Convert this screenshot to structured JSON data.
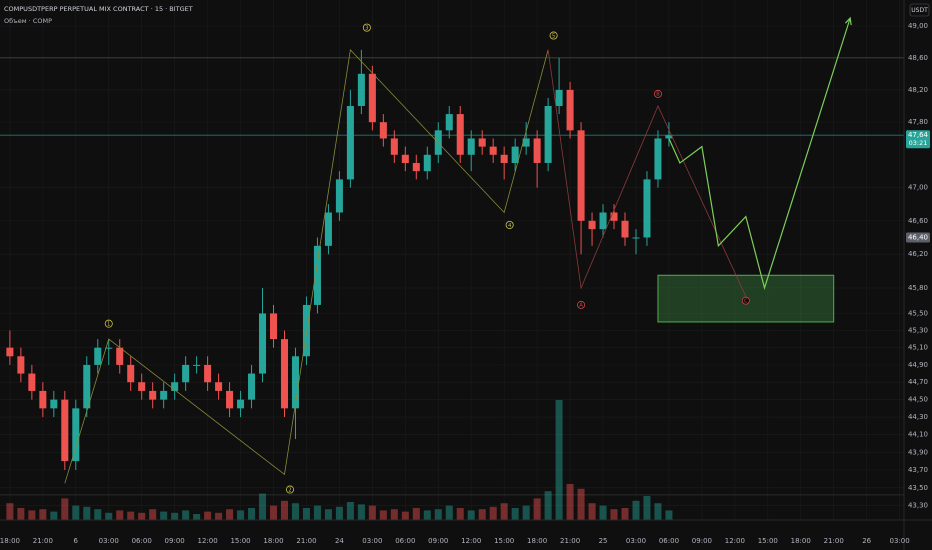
{
  "chart_data": {
    "type": "candlestick",
    "title": "COMPUSDTPERP PERPETUAL MIX CONTRACT · 15 · BITGET",
    "subtitle": "Объем · COMP",
    "currency": "USDT",
    "log_scale": true,
    "grid": true,
    "up_color": "#26a69a",
    "down_color": "#ef5350",
    "x": [
      0,
      1,
      2,
      3,
      4,
      5,
      6,
      7,
      8,
      9,
      10,
      11,
      12,
      13,
      14,
      15,
      16,
      17,
      18,
      19,
      20,
      21,
      22,
      23,
      24,
      25,
      26,
      27,
      28,
      29,
      30,
      31,
      32,
      33,
      34,
      35,
      36,
      37,
      38,
      39,
      40,
      41,
      42,
      43,
      44,
      45,
      46,
      47,
      48,
      49,
      50,
      51,
      52,
      53,
      54,
      55,
      56,
      57,
      58,
      59,
      60
    ],
    "open": [
      45.1,
      45.0,
      44.8,
      44.6,
      44.4,
      44.5,
      43.8,
      44.4,
      44.9,
      45.1,
      45.1,
      44.9,
      44.7,
      44.6,
      44.5,
      44.6,
      44.7,
      44.9,
      44.9,
      44.7,
      44.6,
      44.4,
      44.5,
      44.8,
      45.5,
      45.2,
      44.4,
      45.0,
      45.6,
      46.3,
      46.7,
      47.1,
      48.0,
      48.4,
      47.8,
      47.6,
      47.4,
      47.3,
      47.2,
      47.4,
      47.7,
      47.9,
      47.4,
      47.6,
      47.5,
      47.4,
      47.3,
      47.5,
      47.6,
      47.3,
      48.0,
      48.2,
      47.7,
      46.6,
      46.5,
      46.7,
      46.6,
      46.4,
      46.4,
      47.1,
      47.6
    ],
    "high": [
      45.3,
      45.1,
      44.9,
      44.7,
      44.6,
      44.6,
      44.5,
      45.0,
      45.2,
      45.2,
      45.2,
      45.0,
      44.8,
      44.7,
      44.7,
      44.8,
      45.0,
      45.0,
      45.0,
      44.8,
      44.7,
      44.6,
      44.9,
      45.8,
      45.6,
      45.3,
      45.1,
      45.7,
      46.4,
      46.8,
      47.2,
      48.2,
      48.7,
      48.5,
      47.9,
      47.7,
      47.5,
      47.4,
      47.5,
      47.8,
      48.0,
      48.0,
      47.7,
      47.7,
      47.6,
      47.5,
      47.6,
      47.8,
      47.7,
      48.1,
      48.6,
      48.3,
      47.8,
      46.7,
      46.8,
      46.8,
      46.7,
      46.5,
      47.2,
      47.7,
      47.8
    ],
    "low": [
      44.9,
      44.7,
      44.5,
      44.3,
      44.3,
      43.7,
      43.7,
      44.3,
      44.8,
      44.9,
      44.8,
      44.6,
      44.5,
      44.4,
      44.4,
      44.5,
      44.6,
      44.8,
      44.6,
      44.5,
      44.3,
      44.3,
      44.4,
      44.7,
      45.1,
      44.3,
      44.05,
      44.9,
      45.5,
      46.2,
      46.6,
      47.0,
      47.9,
      47.7,
      47.5,
      47.3,
      47.2,
      47.1,
      47.1,
      47.3,
      47.6,
      47.3,
      47.2,
      47.4,
      47.3,
      47.1,
      47.2,
      47.4,
      47.0,
      47.2,
      47.9,
      47.6,
      46.2,
      46.3,
      46.4,
      46.5,
      46.3,
      46.2,
      46.3,
      47.0,
      47.5
    ],
    "close": [
      45.0,
      44.8,
      44.6,
      44.4,
      44.5,
      43.8,
      44.4,
      44.9,
      45.1,
      45.1,
      44.9,
      44.7,
      44.6,
      44.5,
      44.6,
      44.7,
      44.9,
      44.9,
      44.7,
      44.6,
      44.4,
      44.5,
      44.8,
      45.5,
      45.2,
      44.4,
      45.0,
      45.6,
      46.3,
      46.7,
      47.1,
      48.0,
      48.4,
      47.8,
      47.6,
      47.4,
      47.3,
      47.2,
      47.4,
      47.7,
      47.9,
      47.4,
      47.6,
      47.5,
      47.4,
      47.3,
      47.5,
      47.6,
      47.3,
      48.0,
      48.2,
      47.7,
      46.6,
      46.5,
      46.7,
      46.6,
      46.4,
      46.4,
      47.1,
      47.6,
      47.64
    ],
    "volume": [
      14,
      10,
      8,
      9,
      7,
      18,
      12,
      11,
      9,
      6,
      8,
      7,
      6,
      9,
      7,
      6,
      8,
      5,
      7,
      6,
      9,
      8,
      10,
      22,
      12,
      16,
      14,
      10,
      12,
      9,
      11,
      15,
      13,
      12,
      8,
      9,
      7,
      10,
      8,
      9,
      12,
      10,
      8,
      9,
      11,
      14,
      10,
      12,
      18,
      24,
      100,
      30,
      26,
      14,
      12,
      9,
      10,
      16,
      20,
      14,
      8
    ],
    "xlim": [
      -0.9,
      81.4
    ],
    "ylim": [
      43.14,
      49.33
    ],
    "xticks": [
      {
        "value": 0,
        "label": "18:00"
      },
      {
        "value": 3,
        "label": "21:00"
      },
      6,
      {
        "value": 9,
        "label": "03:00"
      },
      {
        "value": 12,
        "label": "06:00"
      },
      {
        "value": 15,
        "label": "09:00"
      },
      {
        "value": 18,
        "label": "12:00"
      },
      {
        "value": 21,
        "label": "15:00"
      },
      {
        "value": 24,
        "label": "18:00"
      },
      {
        "value": 27,
        "label": "21:00"
      },
      {
        "value": 30,
        "label": "24"
      },
      {
        "value": 33,
        "label": "03:00"
      },
      {
        "value": 36,
        "label": "06:00"
      },
      {
        "value": 39,
        "label": "09:00"
      },
      {
        "value": 42,
        "label": "12:00"
      },
      {
        "value": 45,
        "label": "15:00"
      },
      {
        "value": 48,
        "label": "18:00"
      },
      {
        "value": 51,
        "label": "21:00"
      },
      {
        "value": 54,
        "label": "25"
      },
      {
        "value": 57,
        "label": "03:00"
      },
      {
        "value": 60,
        "label": "06:00"
      },
      {
        "value": 63,
        "label": "09:00"
      },
      {
        "value": 66,
        "label": "12:00"
      },
      {
        "value": 69,
        "label": "15:00"
      },
      {
        "value": 72,
        "label": "18:00"
      },
      {
        "value": 75,
        "label": "21:00"
      },
      {
        "value": 78,
        "label": "26"
      },
      {
        "value": 81,
        "label": "03:00"
      }
    ],
    "yticks": [
      {
        "value": 49.0,
        "label": "49,00"
      },
      {
        "value": 48.6,
        "label": "48,60"
      },
      {
        "value": 48.2,
        "label": "48,20"
      },
      {
        "value": 47.8,
        "label": "47,80"
      },
      {
        "value": 47.0,
        "label": "47,00"
      },
      {
        "value": 46.6,
        "label": "46,60"
      },
      {
        "value": 46.2,
        "label": "46,20"
      },
      {
        "value": 45.8,
        "label": "45,80"
      },
      {
        "value": 45.5,
        "label": "45,50"
      },
      {
        "value": 45.3,
        "label": "45,30"
      },
      {
        "value": 45.1,
        "label": "45,10"
      },
      {
        "value": 44.9,
        "label": "44,90"
      },
      {
        "value": 44.7,
        "label": "44,70"
      },
      {
        "value": 44.5,
        "label": "44,50"
      },
      {
        "value": 44.3,
        "label": "44,30"
      },
      {
        "value": 44.1,
        "label": "44,10"
      },
      {
        "value": 43.9,
        "label": "43,90"
      },
      {
        "value": 43.7,
        "label": "43,70"
      },
      {
        "value": 43.5,
        "label": "43,50"
      },
      {
        "value": 43.3,
        "label": "43,30"
      }
    ],
    "hlines": [
      {
        "value": 48.6,
        "color": "#3b4a3b"
      },
      {
        "value": 47.64,
        "color": "#1f7a70"
      },
      {
        "value": 43.42,
        "color": "#333333"
      }
    ],
    "price_labels": [
      {
        "value": 47.64,
        "label": "47,64",
        "countdown": "03:21",
        "color": "#26a69a"
      },
      {
        "value": 46.4,
        "label": "46,40",
        "color": "#5d606b"
      }
    ],
    "waves": [
      {
        "color": "#8a8a3a",
        "x": [
          5,
          9,
          25,
          31,
          45,
          49
        ],
        "y": [
          43.55,
          45.2,
          43.65,
          48.7,
          46.7,
          48.7
        ]
      },
      {
        "color": "#8a3a3a",
        "x": [
          49,
          52,
          59,
          67
        ],
        "y": [
          48.7,
          45.8,
          48.0,
          45.7
        ]
      },
      {
        "color": "#7ccf5a",
        "x": [
          60,
          61,
          63,
          64.5,
          67,
          68.7,
          76.5
        ],
        "y": [
          47.6,
          47.3,
          47.5,
          46.3,
          46.65,
          45.8,
          49.1
        ]
      }
    ],
    "wave_labels": [
      {
        "text": "1",
        "x": 9,
        "y": 45.38,
        "color": "#d4c94a"
      },
      {
        "text": "2",
        "x": 25.5,
        "y": 43.48,
        "color": "#d4c94a"
      },
      {
        "text": "3",
        "x": 32.5,
        "y": 48.98,
        "color": "#d4c94a"
      },
      {
        "text": "4",
        "x": 45.5,
        "y": 46.55,
        "color": "#d4c94a"
      },
      {
        "text": "5",
        "x": 49.5,
        "y": 48.88,
        "color": "#d4c94a"
      },
      {
        "text": "A",
        "x": 52,
        "y": 45.6,
        "color": "#d04545"
      },
      {
        "text": "B",
        "x": 59,
        "y": 48.15,
        "color": "#d04545"
      },
      {
        "text": "C",
        "x": 67,
        "y": 45.65,
        "color": "#d04545"
      }
    ],
    "zone": {
      "x": [
        59,
        75
      ],
      "y": [
        45.4,
        45.95
      ],
      "color": "#4caf50"
    }
  }
}
